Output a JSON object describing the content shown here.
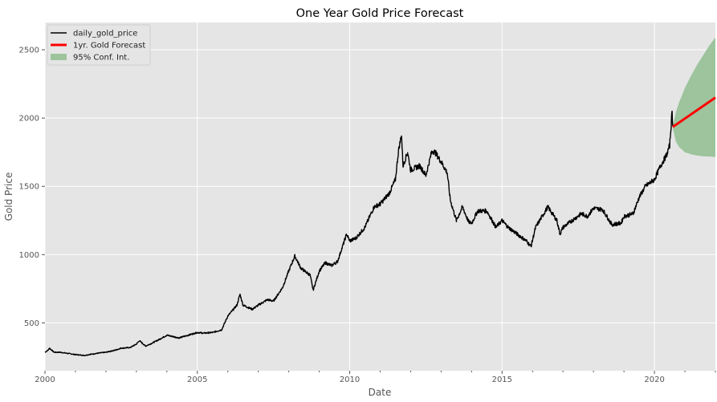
{
  "chart_data": {
    "type": "line",
    "title": "One Year Gold Price Forecast",
    "xlabel": "Date",
    "ylabel": "Gold Price",
    "xlim": [
      2000.0,
      2022.0
    ],
    "ylim": [
      150,
      2700
    ],
    "x_ticks": [
      2000,
      2005,
      2010,
      2015,
      2020
    ],
    "x_tick_labels": [
      "2000",
      "2005",
      "2010",
      "2015",
      "2020"
    ],
    "y_ticks": [
      500,
      1000,
      1500,
      2000,
      2500
    ],
    "y_tick_labels": [
      "500",
      "1000",
      "1500",
      "2000",
      "2500"
    ],
    "grid": true,
    "legend_position": "top-left",
    "colors": {
      "background": "#e5e5e5",
      "grid": "#ffffff",
      "history": "#000000",
      "forecast": "#ff0000",
      "confidence": "#9dc49d"
    },
    "series": [
      {
        "name": "daily_gold_price",
        "kind": "line",
        "points": [
          [
            2000.0,
            285
          ],
          [
            2000.1,
            300
          ],
          [
            2000.15,
            315
          ],
          [
            2000.3,
            285
          ],
          [
            2000.5,
            285
          ],
          [
            2000.8,
            275
          ],
          [
            2001.0,
            268
          ],
          [
            2001.3,
            262
          ],
          [
            2001.5,
            270
          ],
          [
            2001.8,
            280
          ],
          [
            2002.0,
            285
          ],
          [
            2002.3,
            300
          ],
          [
            2002.5,
            315
          ],
          [
            2002.8,
            320
          ],
          [
            2003.0,
            345
          ],
          [
            2003.1,
            370
          ],
          [
            2003.3,
            330
          ],
          [
            2003.5,
            350
          ],
          [
            2003.8,
            385
          ],
          [
            2004.0,
            410
          ],
          [
            2004.2,
            400
          ],
          [
            2004.4,
            390
          ],
          [
            2004.7,
            410
          ],
          [
            2005.0,
            430
          ],
          [
            2005.2,
            425
          ],
          [
            2005.5,
            430
          ],
          [
            2005.8,
            450
          ],
          [
            2006.0,
            550
          ],
          [
            2006.3,
            630
          ],
          [
            2006.4,
            710
          ],
          [
            2006.5,
            630
          ],
          [
            2006.8,
            600
          ],
          [
            2007.0,
            630
          ],
          [
            2007.3,
            670
          ],
          [
            2007.5,
            660
          ],
          [
            2007.8,
            760
          ],
          [
            2008.0,
            880
          ],
          [
            2008.2,
            990
          ],
          [
            2008.4,
            900
          ],
          [
            2008.7,
            850
          ],
          [
            2008.8,
            740
          ],
          [
            2009.0,
            880
          ],
          [
            2009.2,
            940
          ],
          [
            2009.4,
            920
          ],
          [
            2009.6,
            950
          ],
          [
            2009.9,
            1150
          ],
          [
            2010.0,
            1100
          ],
          [
            2010.2,
            1120
          ],
          [
            2010.5,
            1200
          ],
          [
            2010.8,
            1350
          ],
          [
            2011.0,
            1370
          ],
          [
            2011.3,
            1450
          ],
          [
            2011.5,
            1550
          ],
          [
            2011.6,
            1760
          ],
          [
            2011.7,
            1880
          ],
          [
            2011.75,
            1650
          ],
          [
            2011.9,
            1750
          ],
          [
            2012.0,
            1620
          ],
          [
            2012.3,
            1650
          ],
          [
            2012.5,
            1580
          ],
          [
            2012.7,
            1760
          ],
          [
            2012.8,
            1750
          ],
          [
            2013.0,
            1680
          ],
          [
            2013.2,
            1600
          ],
          [
            2013.3,
            1400
          ],
          [
            2013.5,
            1250
          ],
          [
            2013.7,
            1350
          ],
          [
            2013.9,
            1240
          ],
          [
            2014.0,
            1230
          ],
          [
            2014.2,
            1320
          ],
          [
            2014.5,
            1320
          ],
          [
            2014.8,
            1200
          ],
          [
            2015.0,
            1250
          ],
          [
            2015.2,
            1200
          ],
          [
            2015.5,
            1150
          ],
          [
            2015.8,
            1100
          ],
          [
            2015.95,
            1060
          ],
          [
            2016.1,
            1200
          ],
          [
            2016.5,
            1350
          ],
          [
            2016.8,
            1250
          ],
          [
            2016.9,
            1150
          ],
          [
            2017.0,
            1200
          ],
          [
            2017.3,
            1250
          ],
          [
            2017.6,
            1300
          ],
          [
            2017.8,
            1280
          ],
          [
            2018.0,
            1340
          ],
          [
            2018.3,
            1330
          ],
          [
            2018.6,
            1220
          ],
          [
            2018.9,
            1230
          ],
          [
            2019.0,
            1280
          ],
          [
            2019.3,
            1300
          ],
          [
            2019.5,
            1420
          ],
          [
            2019.7,
            1500
          ],
          [
            2020.0,
            1550
          ],
          [
            2020.2,
            1650
          ],
          [
            2020.4,
            1730
          ],
          [
            2020.5,
            1800
          ],
          [
            2020.58,
            2050
          ],
          [
            2020.6,
            1940
          ]
        ]
      },
      {
        "name": "1yr. Gold Forecast",
        "kind": "line",
        "points": [
          [
            2020.6,
            1935
          ],
          [
            2022.0,
            2150
          ]
        ]
      },
      {
        "name": "95% Conf. Int.",
        "kind": "band",
        "x": [
          2020.6,
          2020.7,
          2020.8,
          2021.0,
          2021.2,
          2021.4,
          2021.6,
          2021.8,
          2022.0
        ],
        "lower": [
          1930,
          1830,
          1790,
          1750,
          1735,
          1725,
          1720,
          1718,
          1716
        ],
        "upper": [
          1940,
          2040,
          2110,
          2220,
          2310,
          2390,
          2460,
          2530,
          2590
        ]
      }
    ]
  }
}
